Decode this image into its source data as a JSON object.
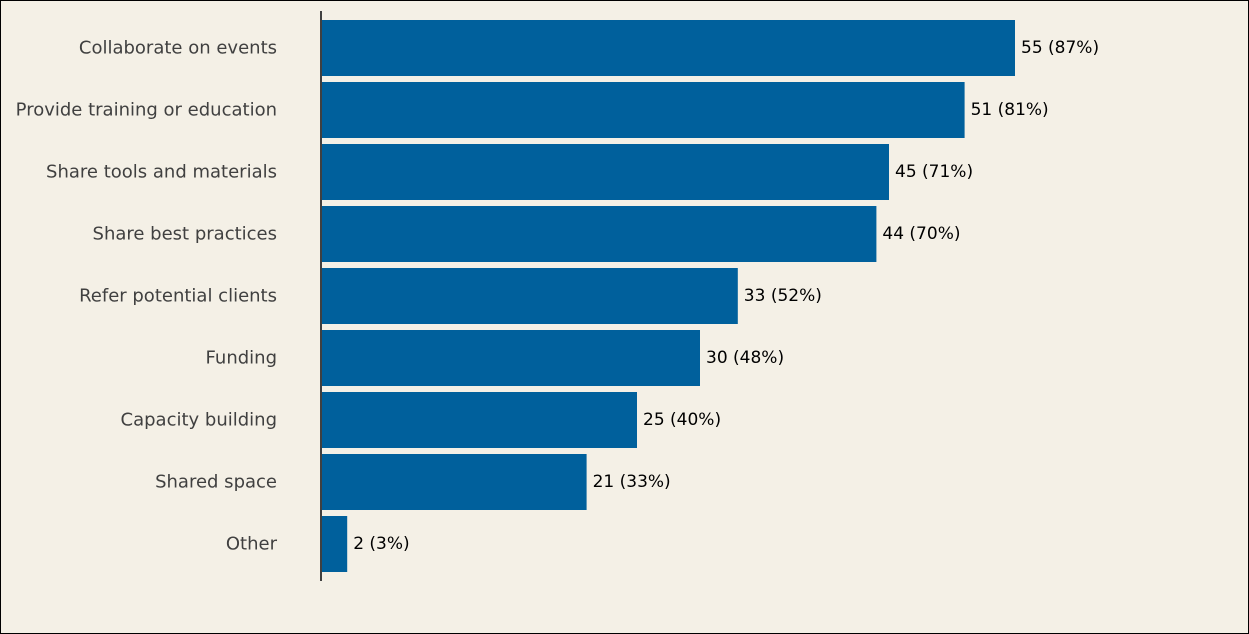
{
  "chart_data": {
    "type": "bar",
    "orientation": "horizontal",
    "title": "",
    "xlabel": "",
    "ylabel": "",
    "categories": [
      "Collaborate on events",
      "Provide training or education",
      "Share tools and materials",
      "Share best practices",
      "Refer potential clients",
      "Funding",
      "Capacity building",
      "Shared space",
      "Other"
    ],
    "values": [
      55,
      51,
      45,
      44,
      33,
      30,
      25,
      21,
      2
    ],
    "data_labels": [
      "55 (87%)",
      "51 (81%)",
      "45 (71%)",
      "44 (70%)",
      "33 (52%)",
      "30 (48%)",
      "25 (40%)",
      "21 (33%)",
      "2 (3%)"
    ],
    "xlim": [
      0,
      55
    ],
    "grid": false,
    "legend": "none",
    "bar_color": "#00609c",
    "background_color": "#f4f0e6",
    "axis_color": "#404040"
  }
}
